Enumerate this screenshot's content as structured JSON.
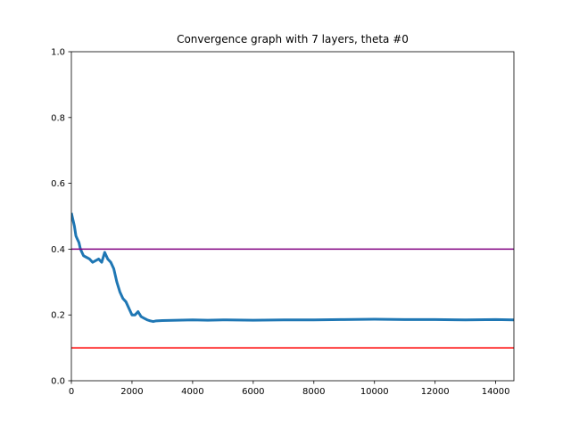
{
  "chart_data": {
    "type": "line",
    "title": "Convergence graph with 7 layers, theta #0",
    "xlabel": "",
    "ylabel": "",
    "xlim": [
      0,
      14600
    ],
    "ylim": [
      0,
      1.0
    ],
    "x_ticks": [
      0,
      2000,
      4000,
      6000,
      8000,
      10000,
      12000,
      14000
    ],
    "x_tick_labels": [
      "0",
      "2000",
      "4000",
      "6000",
      "8000",
      "10000",
      "12000",
      "14000"
    ],
    "y_ticks": [
      0.0,
      0.2,
      0.4,
      0.6,
      0.8,
      1.0
    ],
    "y_tick_labels": [
      "0.0",
      "0.2",
      "0.4",
      "0.6",
      "0.8",
      "1.0"
    ],
    "grid": false,
    "legend": "none",
    "series": [
      {
        "color": "#1f77b4",
        "x": [
          0,
          50,
          100,
          150,
          200,
          250,
          300,
          350,
          400,
          500,
          600,
          700,
          800,
          900,
          1000,
          1100,
          1200,
          1300,
          1400,
          1500,
          1600,
          1700,
          1800,
          1900,
          2000,
          2100,
          2200,
          2300,
          2400,
          2500,
          2600,
          2700,
          2800,
          3000,
          3500,
          4000,
          4500,
          5000,
          6000,
          7000,
          8000,
          9000,
          10000,
          11000,
          12000,
          13000,
          14000,
          14600
        ],
        "y": [
          0.51,
          0.49,
          0.47,
          0.44,
          0.43,
          0.42,
          0.4,
          0.39,
          0.38,
          0.375,
          0.37,
          0.36,
          0.365,
          0.37,
          0.36,
          0.39,
          0.37,
          0.36,
          0.34,
          0.3,
          0.27,
          0.25,
          0.24,
          0.22,
          0.2,
          0.2,
          0.21,
          0.195,
          0.19,
          0.185,
          0.182,
          0.18,
          0.182,
          0.183,
          0.184,
          0.185,
          0.184,
          0.185,
          0.184,
          0.185,
          0.185,
          0.186,
          0.187,
          0.186,
          0.186,
          0.185,
          0.186,
          0.185
        ]
      },
      {
        "color": "#800080",
        "x": [
          0,
          14600
        ],
        "y": [
          0.4,
          0.4
        ]
      },
      {
        "color": "#ff0000",
        "x": [
          0,
          14600
        ],
        "y": [
          0.1,
          0.1
        ]
      }
    ]
  }
}
